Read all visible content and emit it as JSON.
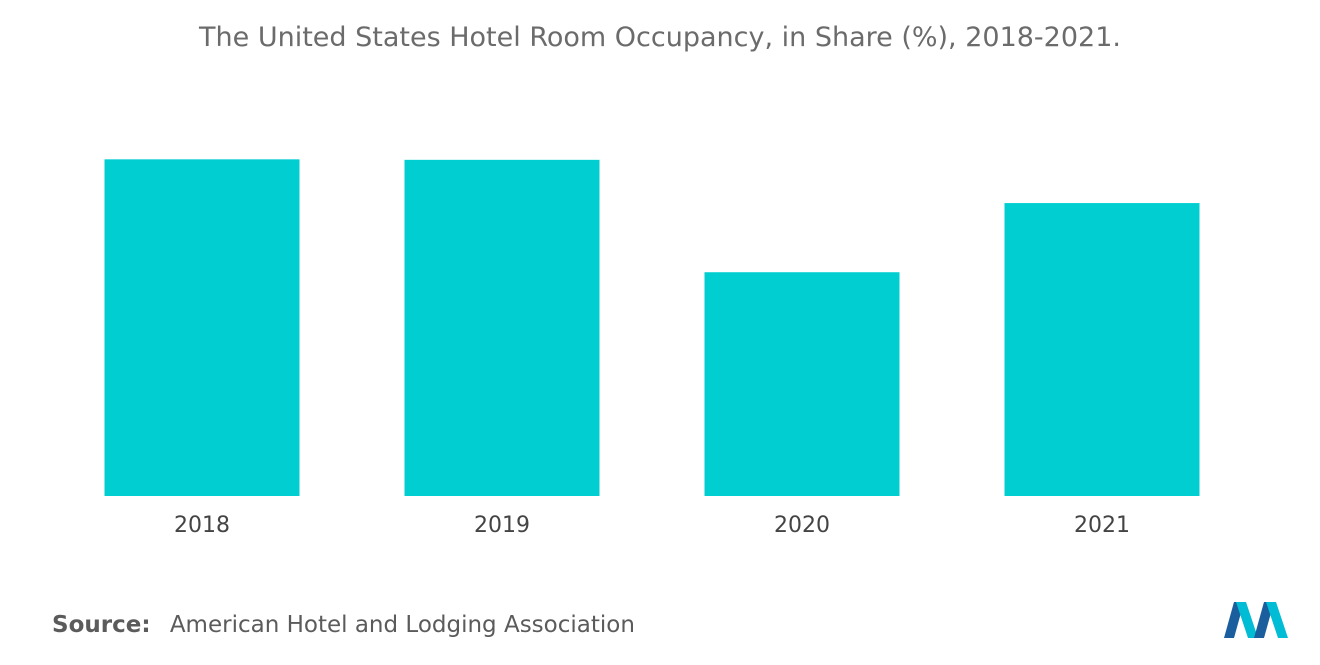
{
  "chart_data": {
    "type": "bar",
    "title": "The United States Hotel Room Occupancy, in Share (%), 2018-2021.",
    "categories": [
      "2018",
      "2019",
      "2020",
      "2021"
    ],
    "values": [
      66.2,
      66.1,
      44.0,
      57.6
    ],
    "ylim": [
      0,
      70
    ],
    "xlabel": "",
    "ylabel": "",
    "grid": false,
    "bar_color": "#00CED1"
  },
  "source": {
    "label": "Source:",
    "text": "American Hotel and Lodging Association"
  },
  "logo": {
    "icon": "mordor-logo-icon",
    "colors": [
      "#1b5e9e",
      "#00bcd4"
    ]
  }
}
